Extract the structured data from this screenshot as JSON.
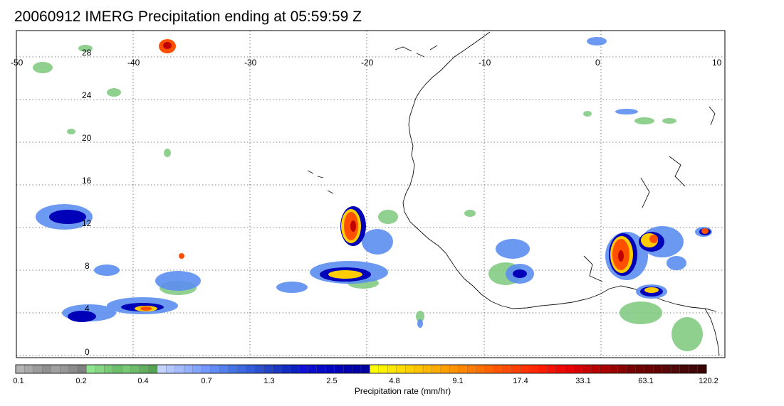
{
  "title": "20060912 IMERG Precipitation ending at 05:59:59 Z",
  "map": {
    "lon_ticks": [
      "-50",
      "-40",
      "-30",
      "-20",
      "-10",
      "0",
      "10"
    ],
    "lat_ticks": [
      "28",
      "24",
      "20",
      "16",
      "12",
      "8",
      "4",
      "0"
    ],
    "lon_range": [
      -50,
      10
    ],
    "lat_range": [
      -0.5,
      29.5
    ],
    "grid": "dotted"
  },
  "colorbar": {
    "title": "Precipitation rate (mm/hr)",
    "labels": [
      "0.1",
      "0.2",
      "0.4",
      "0.7",
      "1.3",
      "2.5",
      "4.8",
      "9.1",
      "17.4",
      "33.1",
      "63.1",
      "120.2"
    ],
    "colors": [
      "#b4b4b4",
      "#a8a8a8",
      "#9c9c9c",
      "#909090",
      "#a0a0a0",
      "#989898",
      "#8c8c8c",
      "#808080",
      "#90e490",
      "#84d884",
      "#78cc78",
      "#6cc06c",
      "#78c878",
      "#6cbc6c",
      "#60b060",
      "#54a454",
      "#c4d4ff",
      "#b4c8ff",
      "#a4bcff",
      "#94b0ff",
      "#84a4ff",
      "#7498ff",
      "#648cf8",
      "#5480f0",
      "#4474e8",
      "#3c68e0",
      "#345cd8",
      "#2c50d0",
      "#2444c8",
      "#1c38c0",
      "#142cc0",
      "#0c20c0",
      "#1010d8",
      "#0c0cd0",
      "#0808c8",
      "#0404c0",
      "#0000b8",
      "#0000b0",
      "#0000a8",
      "#0000a0",
      "#ffff00",
      "#fff400",
      "#ffe800",
      "#ffdc00",
      "#ffd000",
      "#ffc400",
      "#ffb800",
      "#ffac00",
      "#ffa000",
      "#ff9400",
      "#ff8800",
      "#ff7c00",
      "#ff7000",
      "#ff6400",
      "#ff5800",
      "#ff4c00",
      "#ff4000",
      "#ff3400",
      "#ff2800",
      "#ff1c00",
      "#f81000",
      "#f00800",
      "#e80000",
      "#d80000",
      "#c80000",
      "#b80000",
      "#a80000",
      "#980000",
      "#880000",
      "#780000",
      "#700000",
      "#680000",
      "#600000",
      "#580808",
      "#500808",
      "#480808",
      "#400808",
      "#380404"
    ]
  }
}
